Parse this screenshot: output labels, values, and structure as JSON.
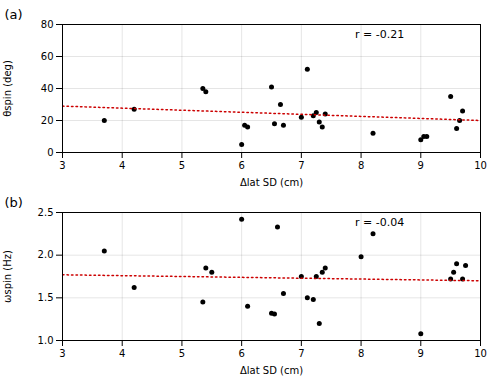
{
  "chart_data": [
    {
      "type": "scatter",
      "title": "(a)",
      "annotation": "r = -0.21",
      "xlabel": "Δlat SD (cm)",
      "ylabel": "θspin (deg)",
      "xlim": [
        3,
        10
      ],
      "ylim": [
        0,
        80
      ],
      "xticks": [
        3,
        4,
        5,
        6,
        7,
        8,
        9,
        10
      ],
      "yticks": [
        0,
        20,
        40,
        60,
        80
      ],
      "grid": true,
      "series": [
        {
          "type": "scatter",
          "color": "#000000",
          "marker": "circle",
          "x": [
            3.7,
            4.2,
            5.35,
            5.4,
            6.0,
            6.05,
            6.1,
            6.5,
            6.55,
            6.65,
            6.7,
            7.0,
            7.1,
            7.2,
            7.25,
            7.3,
            7.35,
            7.4,
            8.2,
            9.0,
            9.05,
            9.1,
            9.5,
            9.6,
            9.65,
            9.7
          ],
          "values": [
            20,
            27,
            40,
            38,
            5,
            17,
            16,
            41,
            18,
            30,
            17,
            22,
            52,
            23,
            25,
            19,
            16,
            24,
            12,
            8,
            10,
            10,
            35,
            15,
            20,
            26
          ]
        },
        {
          "type": "line",
          "color": "#cc0000",
          "line_style": "dotted",
          "x": [
            3,
            10
          ],
          "values": [
            29.0,
            20.0
          ]
        }
      ]
    },
    {
      "type": "scatter",
      "title": "(b)",
      "annotation": "r = -0.04",
      "xlabel": "Δlat SD (cm)",
      "ylabel": "ωspin (Hz)",
      "xlim": [
        3,
        10
      ],
      "ylim": [
        1.0,
        2.5
      ],
      "xticks": [
        3,
        4,
        5,
        6,
        7,
        8,
        9,
        10
      ],
      "yticks": [
        {
          "value": 1.0,
          "label": "1.0"
        },
        1.5,
        {
          "value": 2.0,
          "label": "2.0"
        },
        2.5
      ],
      "grid": true,
      "series": [
        {
          "type": "scatter",
          "color": "#000000",
          "marker": "circle",
          "x": [
            3.7,
            4.2,
            5.35,
            5.4,
            5.5,
            6.0,
            6.1,
            6.5,
            6.55,
            6.6,
            6.7,
            7.0,
            7.1,
            7.2,
            7.25,
            7.3,
            7.35,
            7.4,
            8.0,
            8.2,
            9.0,
            9.5,
            9.55,
            9.6,
            9.7,
            9.75
          ],
          "values": [
            2.05,
            1.62,
            1.45,
            1.85,
            1.8,
            2.42,
            1.4,
            1.32,
            1.31,
            2.33,
            1.55,
            1.75,
            1.5,
            1.48,
            1.75,
            1.2,
            1.8,
            1.85,
            1.98,
            2.25,
            1.08,
            1.72,
            1.8,
            1.9,
            1.72,
            1.88
          ]
        },
        {
          "type": "line",
          "color": "#cc0000",
          "line_style": "dotted",
          "x": [
            3,
            10
          ],
          "values": [
            1.77,
            1.7
          ]
        }
      ]
    }
  ]
}
